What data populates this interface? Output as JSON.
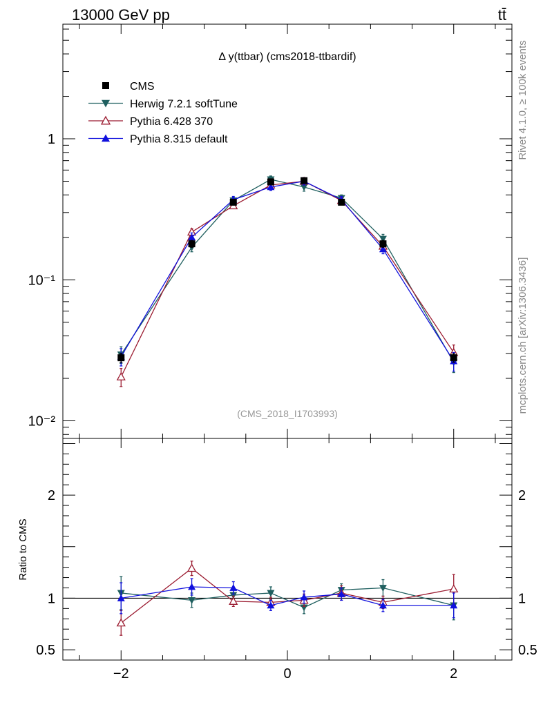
{
  "header": {
    "left": "13000 GeV pp",
    "right": "tt̄"
  },
  "side_texts": {
    "rivet": "Rivet 4.1.0, ≥ 100k events",
    "mcplots": "mcplots.cern.ch [arXiv:1306.3436]"
  },
  "chart_data": {
    "type": "line",
    "title": "Δ y(ttbar) (cms2018-ttbardif)",
    "watermark": "(CMS_2018_I1703993)",
    "xlabel": "",
    "ylabel": "",
    "ratio_ylabel": "Ratio to CMS",
    "xlim": [
      -2.7,
      2.7
    ],
    "ylim": [
      0.0075,
      6.5
    ],
    "yscale": "log",
    "ratio_ylim": [
      0.4,
      2.55
    ],
    "x_ticks": [
      -2,
      0,
      2
    ],
    "x_tick_labels": [
      "−2",
      "0",
      "2"
    ],
    "y_tick_labels": [
      "10⁻²",
      "10⁻¹",
      "1"
    ],
    "ratio_tick_labels": [
      "0.5",
      "1",
      "2"
    ],
    "x": [
      -2.0,
      -1.15,
      -0.65,
      -0.2,
      0.2,
      0.65,
      1.15,
      2.0
    ],
    "data": {
      "name": "CMS",
      "values": [
        0.028,
        0.18,
        0.355,
        0.495,
        0.505,
        0.355,
        0.18,
        0.028
      ],
      "errors": [
        0.002,
        0.01,
        0.015,
        0.02,
        0.02,
        0.015,
        0.01,
        0.002
      ],
      "color": "#000000",
      "marker": "square"
    },
    "series": [
      {
        "name": "Herwig 7.2.1 softTune",
        "color": "#1f5f5f",
        "marker": "triangle-down",
        "values": [
          0.0295,
          0.17,
          0.365,
          0.515,
          0.455,
          0.38,
          0.195,
          0.026
        ],
        "errors": [
          0.004,
          0.012,
          0.02,
          0.03,
          0.03,
          0.02,
          0.015,
          0.004
        ],
        "ratio": [
          1.05,
          0.98,
          1.03,
          1.05,
          0.91,
          1.08,
          1.1,
          0.93
        ],
        "ratio_err": [
          0.16,
          0.07,
          0.06,
          0.06,
          0.06,
          0.06,
          0.08,
          0.14
        ]
      },
      {
        "name": "Pythia 6.428 370",
        "color": "#9b1b30",
        "marker": "triangle-up-open",
        "values": [
          0.0205,
          0.218,
          0.335,
          0.47,
          0.5,
          0.365,
          0.173,
          0.0305
        ],
        "errors": [
          0.003,
          0.012,
          0.015,
          0.025,
          0.03,
          0.02,
          0.012,
          0.004
        ],
        "ratio": [
          0.76,
          1.29,
          0.97,
          0.96,
          0.98,
          1.05,
          0.96,
          1.09
        ],
        "ratio_err": [
          0.12,
          0.07,
          0.05,
          0.05,
          0.06,
          0.07,
          0.06,
          0.14
        ]
      },
      {
        "name": "Pythia 8.315 default",
        "color": "#1010dd",
        "marker": "triangle-up",
        "values": [
          0.0285,
          0.2,
          0.37,
          0.455,
          0.5,
          0.37,
          0.165,
          0.0265
        ],
        "errors": [
          0.004,
          0.015,
          0.02,
          0.025,
          0.03,
          0.02,
          0.012,
          0.004
        ],
        "ratio": [
          1.0,
          1.11,
          1.1,
          0.93,
          1.01,
          1.04,
          0.93,
          0.93
        ],
        "ratio_err": [
          0.15,
          0.08,
          0.06,
          0.05,
          0.06,
          0.06,
          0.06,
          0.12
        ]
      }
    ]
  }
}
